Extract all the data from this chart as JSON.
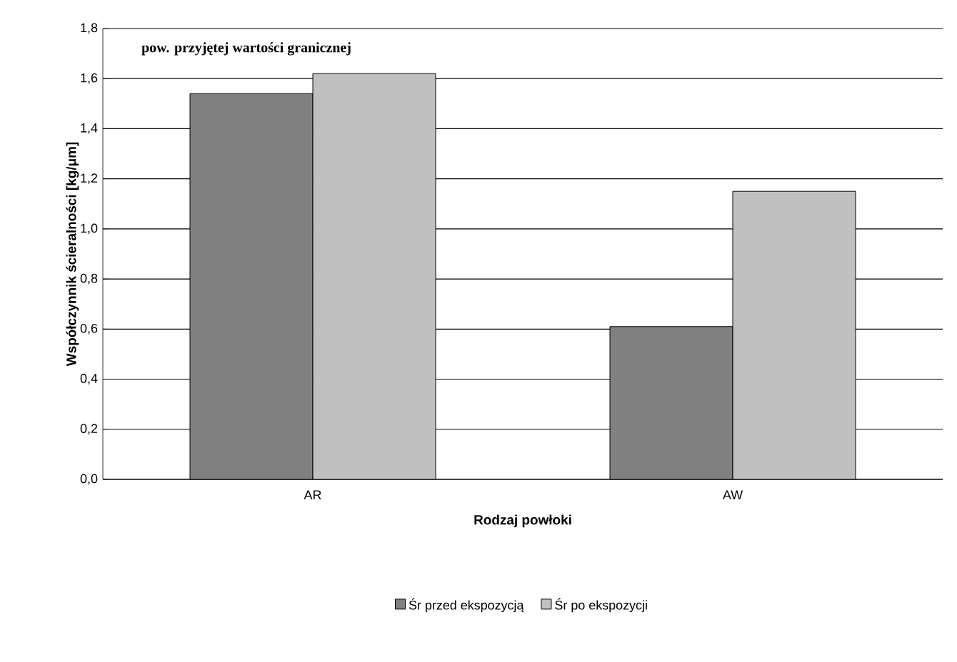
{
  "chart_data": {
    "type": "bar",
    "xlabel": "Rodzaj powłoki",
    "ylabel": "Współczynnik ścieralności [kg/μm]",
    "categories": [
      "AR",
      "AW"
    ],
    "series": [
      {
        "name": "Śr przed ekspozycją",
        "color": "#808080",
        "values": [
          1.54,
          0.61
        ]
      },
      {
        "name": "Śr po ekspozycji",
        "color": "#c0c0c0",
        "values": [
          1.62,
          1.15
        ]
      }
    ],
    "ylim": [
      0,
      1.8
    ],
    "yticks": [
      {
        "value": 0,
        "label": "0,0"
      },
      {
        "value": 0.2,
        "label": "0,2"
      },
      {
        "value": 0.4,
        "label": "0,4"
      },
      {
        "value": 0.6,
        "label": "0,6"
      },
      {
        "value": 0.8,
        "label": "0,8"
      },
      {
        "value": 1.0,
        "label": "1,0"
      },
      {
        "value": 1.2,
        "label": "1,2"
      },
      {
        "value": 1.4,
        "label": "1,4"
      },
      {
        "value": 1.6,
        "label": "1,6"
      },
      {
        "value": 1.8,
        "label": "1,8"
      }
    ],
    "grid": "y",
    "legend": "bottom",
    "annotations": [
      "pow. przyjętej wartości granicznej"
    ]
  }
}
